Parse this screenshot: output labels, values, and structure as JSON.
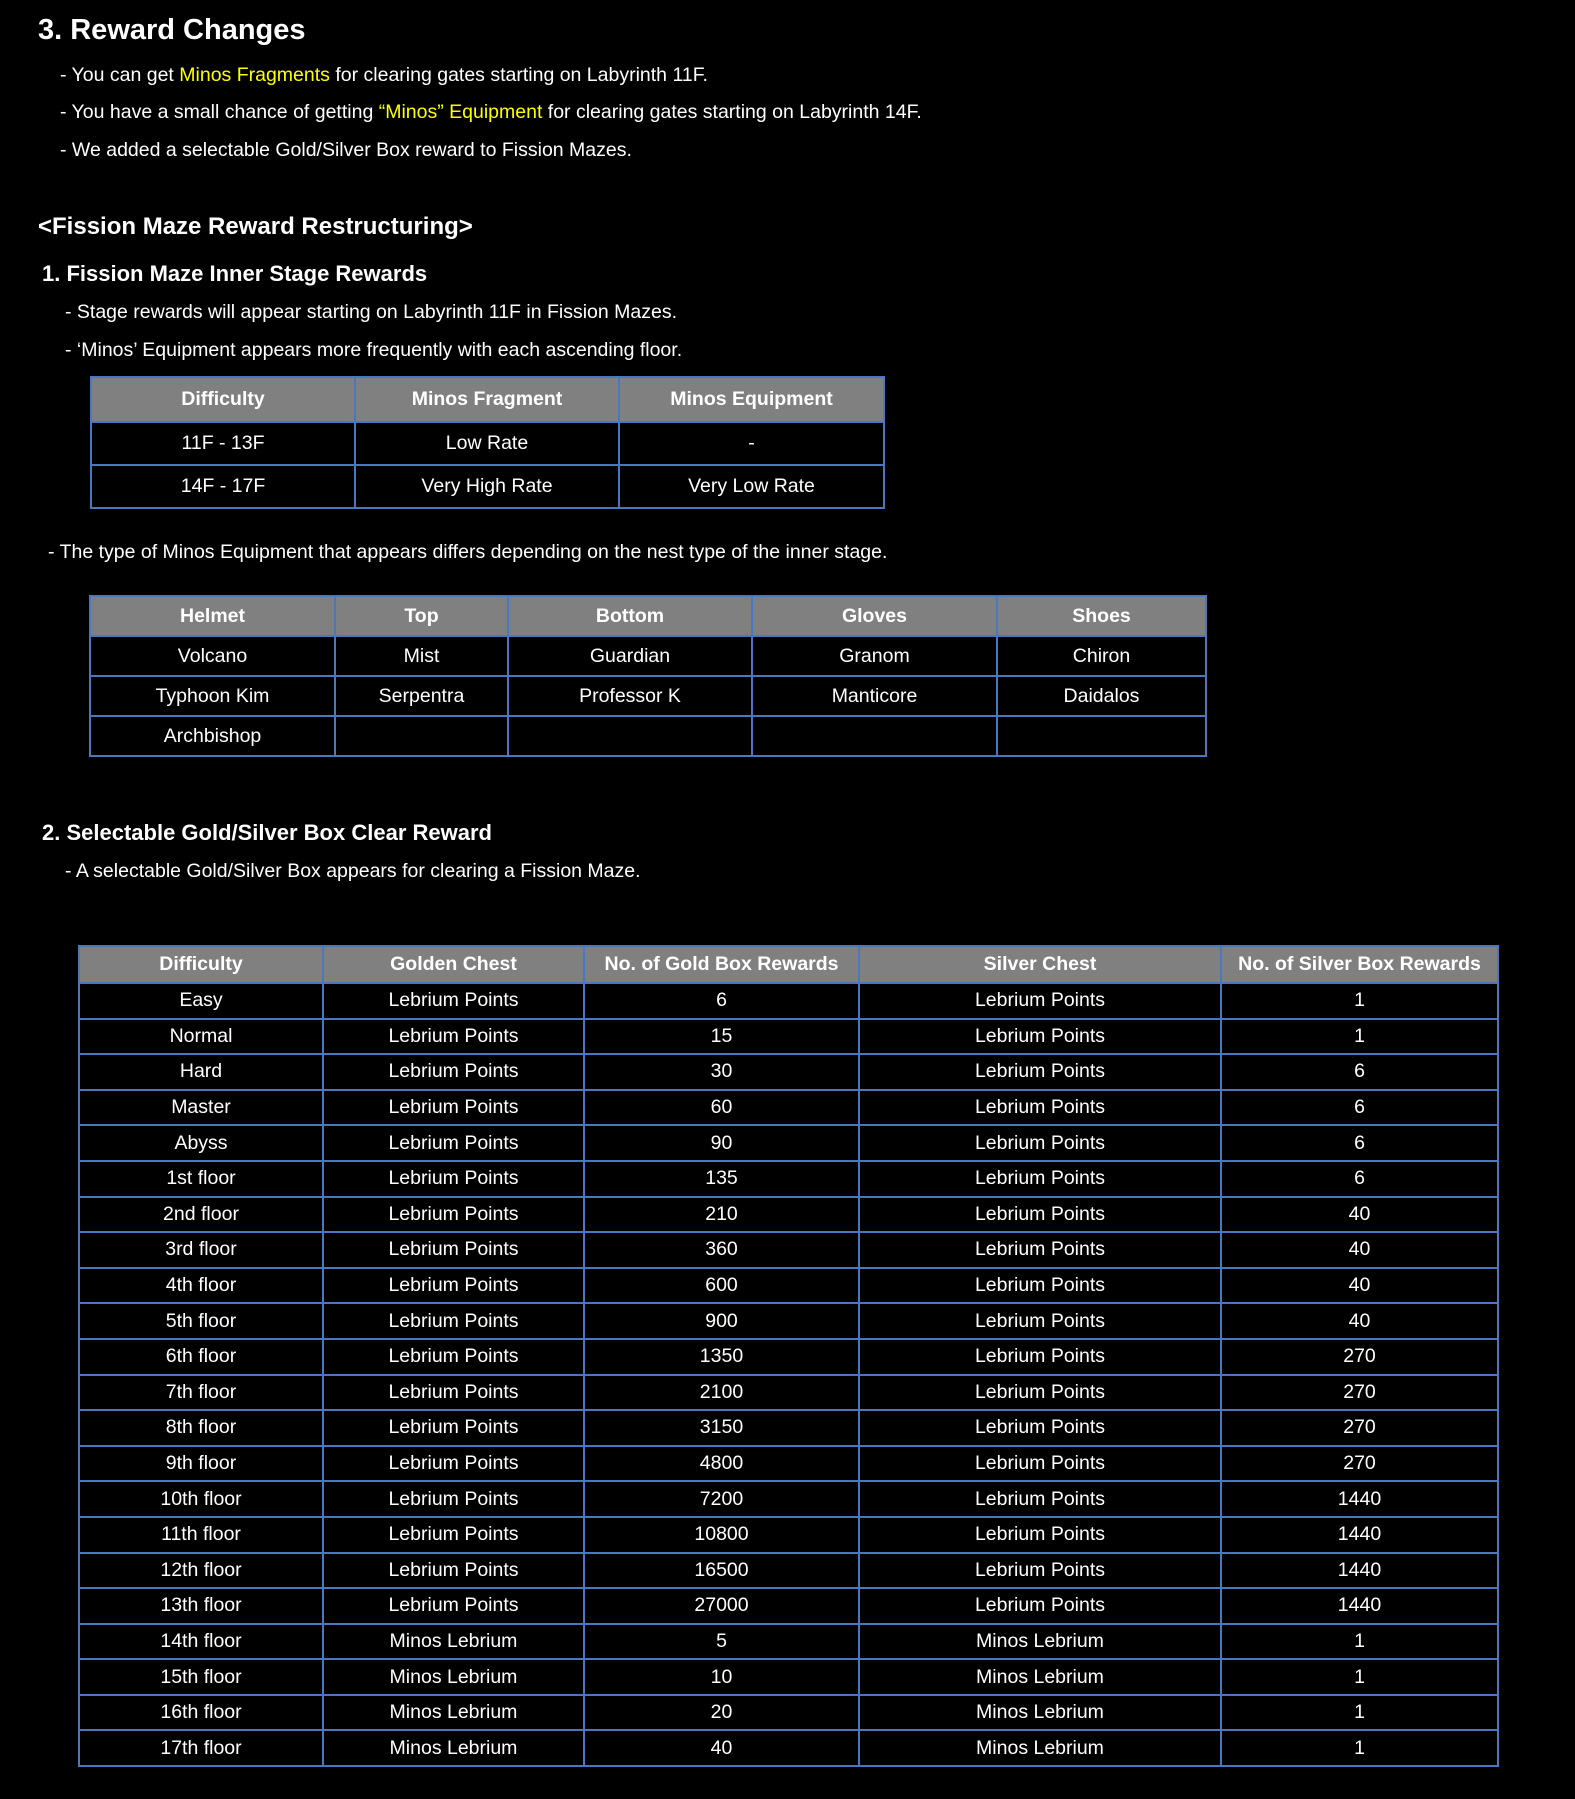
{
  "title": "3.  Reward Changes",
  "intro_bullets": [
    {
      "pre": "- You can get ",
      "hl": "Minos Fragments",
      "post": " for clearing gates starting on Labyrinth 11F."
    },
    {
      "pre": "- You have a small chance of getting ",
      "hl": "“Minos” Equipment",
      "post": " for clearing gates starting on Labyrinth 14F."
    },
    {
      "pre": "- We added a selectable Gold/Silver Box reward to Fission Mazes.",
      "hl": "",
      "post": ""
    }
  ],
  "highlight_color": "#ffff00",
  "section_title": "<Fission Maze Reward Restructuring>",
  "sub1": {
    "title": "1. Fission Maze Inner Stage Rewards",
    "bullets": [
      "- Stage rewards will appear starting on Labyrinth 11F in Fission Mazes.",
      "- ‘Minos’ Equipment appears more frequently with each ascending floor."
    ],
    "table": {
      "headers": [
        "Difficulty",
        "Minos Fragment",
        "Minos Equipment"
      ],
      "rows": [
        [
          "11F - 13F",
          "Low Rate",
          "-"
        ],
        [
          "14F - 17F",
          "Very High Rate",
          "Very Low Rate"
        ]
      ]
    },
    "note": "- The type of Minos Equipment that appears differs depending on the nest type of the inner stage.",
    "equip_table": {
      "headers": [
        "Helmet",
        "Top",
        "Bottom",
        "Gloves",
        "Shoes"
      ],
      "rows": [
        [
          "Volcano",
          "Mist",
          "Guardian",
          "Granom",
          "Chiron"
        ],
        [
          "Typhoon Kim",
          "Serpentra",
          "Professor K",
          "Manticore",
          "Daidalos"
        ],
        [
          "Archbishop",
          "",
          "",
          "",
          ""
        ]
      ]
    }
  },
  "sub2": {
    "title": "2. Selectable Gold/Silver Box Clear Reward",
    "bullet": "- A selectable Gold/Silver Box appears for clearing a Fission Maze.",
    "table": {
      "headers": [
        "Difficulty",
        "Golden Chest",
        "No. of Gold Box Rewards",
        "Silver Chest",
        "No. of Silver Box Rewards"
      ],
      "rows": [
        [
          "Easy",
          "Lebrium Points",
          "6",
          "Lebrium Points",
          "1"
        ],
        [
          "Normal",
          "Lebrium Points",
          "15",
          "Lebrium Points",
          "1"
        ],
        [
          "Hard",
          "Lebrium Points",
          "30",
          "Lebrium Points",
          "6"
        ],
        [
          "Master",
          "Lebrium Points",
          "60",
          "Lebrium Points",
          "6"
        ],
        [
          "Abyss",
          "Lebrium Points",
          "90",
          "Lebrium Points",
          "6"
        ],
        [
          "1st floor",
          "Lebrium Points",
          "135",
          "Lebrium Points",
          "6"
        ],
        [
          "2nd floor",
          "Lebrium Points",
          "210",
          "Lebrium Points",
          "40"
        ],
        [
          "3rd floor",
          "Lebrium Points",
          "360",
          "Lebrium Points",
          "40"
        ],
        [
          "4th floor",
          "Lebrium Points",
          "600",
          "Lebrium Points",
          "40"
        ],
        [
          "5th floor",
          "Lebrium Points",
          "900",
          "Lebrium Points",
          "40"
        ],
        [
          "6th floor",
          "Lebrium Points",
          "1350",
          "Lebrium Points",
          "270"
        ],
        [
          "7th floor",
          "Lebrium Points",
          "2100",
          "Lebrium Points",
          "270"
        ],
        [
          "8th floor",
          "Lebrium Points",
          "3150",
          "Lebrium Points",
          "270"
        ],
        [
          "9th floor",
          "Lebrium Points",
          "4800",
          "Lebrium Points",
          "270"
        ],
        [
          "10th floor",
          "Lebrium Points",
          "7200",
          "Lebrium Points",
          "1440"
        ],
        [
          "11th floor",
          "Lebrium Points",
          "10800",
          "Lebrium Points",
          "1440"
        ],
        [
          "12th floor",
          "Lebrium Points",
          "16500",
          "Lebrium Points",
          "1440"
        ],
        [
          "13th floor",
          "Lebrium Points",
          "27000",
          "Lebrium Points",
          "1440"
        ],
        [
          "14th floor",
          "Minos Lebrium",
          "5",
          "Minos Lebrium",
          "1"
        ],
        [
          "15th floor",
          "Minos Lebrium",
          "10",
          "Minos Lebrium",
          "1"
        ],
        [
          "16th floor",
          "Minos Lebrium",
          "20",
          "Minos Lebrium",
          "1"
        ],
        [
          "17th floor",
          "Minos Lebrium",
          "40",
          "Minos Lebrium",
          "1"
        ]
      ]
    }
  }
}
